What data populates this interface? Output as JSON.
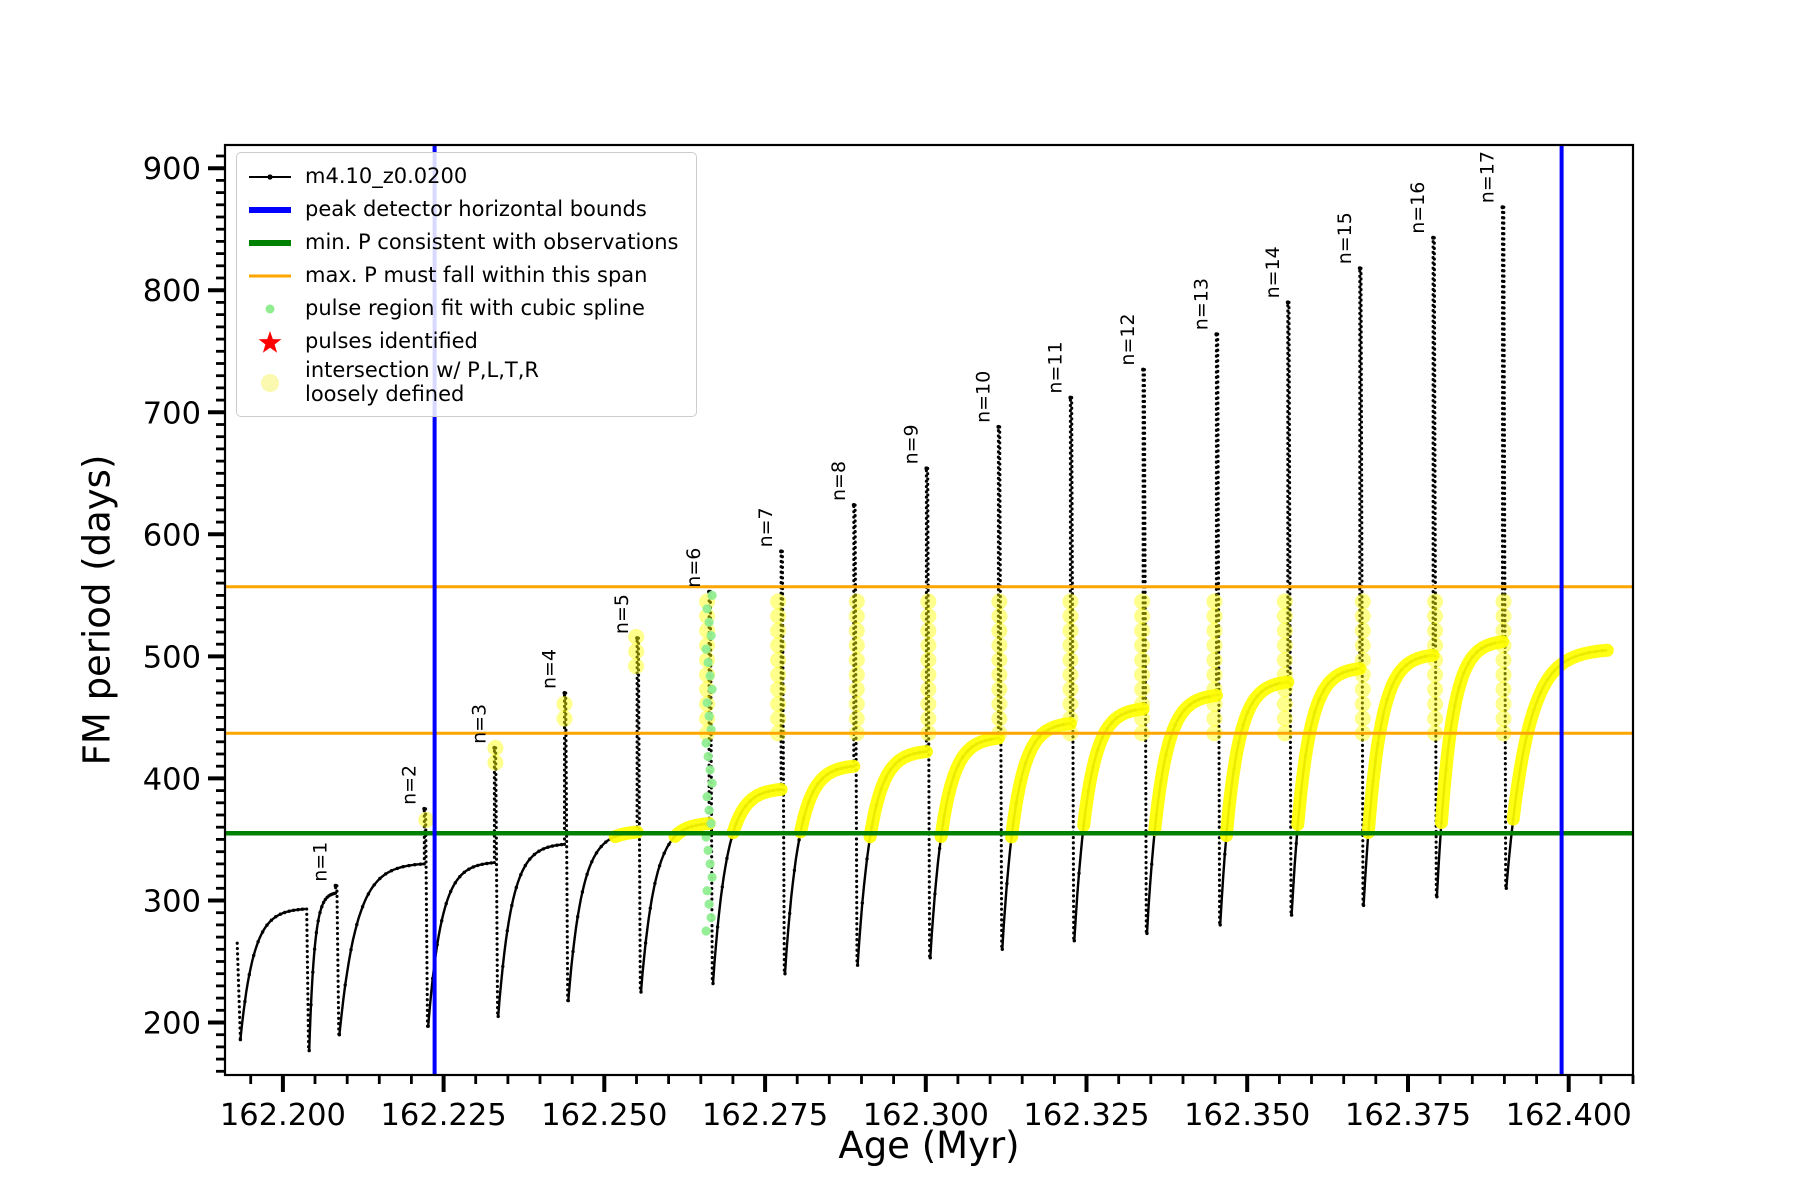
{
  "axes": {
    "xlabel": "Age (Myr)",
    "ylabel": "FM period (days)",
    "xlim": [
      162.191,
      162.41
    ],
    "ylim": [
      157,
      919
    ],
    "xticks": [
      {
        "v": 162.2,
        "label": "162.200"
      },
      {
        "v": 162.225,
        "label": "162.225"
      },
      {
        "v": 162.25,
        "label": "162.250"
      },
      {
        "v": 162.275,
        "label": "162.275"
      },
      {
        "v": 162.3,
        "label": "162.300"
      },
      {
        "v": 162.325,
        "label": "162.325"
      },
      {
        "v": 162.35,
        "label": "162.350"
      },
      {
        "v": 162.375,
        "label": "162.375"
      },
      {
        "v": 162.4,
        "label": "162.400"
      }
    ],
    "yticks": [
      {
        "v": 200,
        "label": "200"
      },
      {
        "v": 300,
        "label": "300"
      },
      {
        "v": 400,
        "label": "400"
      },
      {
        "v": 500,
        "label": "500"
      },
      {
        "v": 600,
        "label": "600"
      },
      {
        "v": 700,
        "label": "700"
      },
      {
        "v": 800,
        "label": "800"
      },
      {
        "v": 900,
        "label": "900"
      }
    ],
    "xminor_step": 0.005,
    "yminor_step": 10
  },
  "legend": {
    "items": [
      {
        "marker": "line-dot",
        "color": "#000000",
        "label": "m4.10_z0.0200"
      },
      {
        "marker": "thick-line",
        "color": "#0000ff",
        "label": "peak detector horizontal bounds"
      },
      {
        "marker": "thick-line",
        "color": "#008000",
        "label": "min. P consistent with observations"
      },
      {
        "marker": "line",
        "color": "#ffa500",
        "label": "max. P must fall within this span"
      },
      {
        "marker": "dot",
        "color": "#90ee90",
        "label": "pulse region fit with cubic spline"
      },
      {
        "marker": "star",
        "color": "#ff0000",
        "label": "pulses identified"
      },
      {
        "marker": "big-dot",
        "color": "#fbf9b0",
        "label": "intersection w/ P,L,T,R\nloosely defined"
      }
    ]
  },
  "chart_data": {
    "type": "line",
    "title": "",
    "xlabel": "Age (Myr)",
    "ylabel": "FM period (days)",
    "xlim": [
      162.191,
      162.41
    ],
    "ylim": [
      157,
      919
    ],
    "series_name": "m4.10_z0.0200",
    "palette": {
      "black": "#000000",
      "blue": "#0000ff",
      "green": "#008000",
      "orange": "#ffa500",
      "yellow": "#ffff00",
      "lightgreen": "#90ee90",
      "red": "#ff0000"
    },
    "vlines": {
      "color": "#0000ff",
      "x": [
        162.2236,
        162.3989
      ],
      "width": 4
    },
    "hlines": [
      {
        "color": "#008000",
        "y": 355,
        "width": 4.5
      },
      {
        "color": "#ffa500",
        "y": 437,
        "width": 3
      },
      {
        "color": "#ffa500",
        "y": 557,
        "width": 3
      }
    ],
    "yellow_band": [
      352,
      560
    ],
    "green_column": {
      "x": 162.2663,
      "y_min": 275,
      "y_max": 550,
      "step": 11
    },
    "cycles": [
      {
        "n": "",
        "x_start": 162.1934,
        "y_min": 186,
        "x_spike": 162.2035,
        "shoulder": 293,
        "peak": 293,
        "yellow_rise": false,
        "yellow_spike": null,
        "pre_drop": {
          "x": 162.1929,
          "y_top": 265
        }
      },
      {
        "n": "n=1",
        "x_start": 162.2041,
        "y_min": 177,
        "x_spike": 162.2082,
        "shoulder": 306,
        "peak": 312,
        "yellow_rise": false,
        "yellow_spike": null
      },
      {
        "n": "n=2",
        "x_start": 162.2088,
        "y_min": 190,
        "x_spike": 162.222,
        "shoulder": 330,
        "peak": 375,
        "yellow_rise": false,
        "yellow_spike": [
          366,
          376
        ]
      },
      {
        "n": "n=3",
        "x_start": 162.2226,
        "y_min": 197,
        "x_spike": 162.2329,
        "shoulder": 331,
        "peak": 425,
        "yellow_rise": false,
        "yellow_spike": [
          413,
          426
        ]
      },
      {
        "n": "n=4",
        "x_start": 162.2335,
        "y_min": 205,
        "x_spike": 162.2438,
        "shoulder": 346,
        "peak": 470,
        "yellow_rise": false,
        "yellow_spike": [
          449,
          471
        ]
      },
      {
        "n": "n=5",
        "x_start": 162.2444,
        "y_min": 218,
        "x_spike": 162.2551,
        "shoulder": 356,
        "peak": 515,
        "yellow_rise": true,
        "yellow_spike": [
          492,
          516
        ]
      },
      {
        "n": "n=6",
        "x_start": 162.2557,
        "y_min": 225,
        "x_spike": 162.2663,
        "shoulder": 363,
        "peak": 553,
        "yellow_rise": true,
        "yellow_spike": [
          437,
          553
        ]
      },
      {
        "n": "n=7",
        "x_start": 162.2669,
        "y_min": 232,
        "x_spike": 162.2775,
        "shoulder": 391,
        "peak": 586,
        "yellow_rise": true,
        "yellow_spike": [
          437,
          545
        ]
      },
      {
        "n": "n=8",
        "x_start": 162.2781,
        "y_min": 240,
        "x_spike": 162.2888,
        "shoulder": 410,
        "peak": 624,
        "yellow_rise": true,
        "yellow_spike": [
          437,
          545
        ]
      },
      {
        "n": "n=9",
        "x_start": 162.2894,
        "y_min": 247,
        "x_spike": 162.3001,
        "shoulder": 422,
        "peak": 654,
        "yellow_rise": true,
        "yellow_spike": [
          437,
          545
        ]
      },
      {
        "n": "n=10",
        "x_start": 162.3007,
        "y_min": 253,
        "x_spike": 162.3113,
        "shoulder": 433,
        "peak": 688,
        "yellow_rise": true,
        "yellow_spike": [
          437,
          545
        ]
      },
      {
        "n": "n=11",
        "x_start": 162.3119,
        "y_min": 260,
        "x_spike": 162.3225,
        "shoulder": 445,
        "peak": 712,
        "yellow_rise": true,
        "yellow_spike": [
          437,
          545
        ]
      },
      {
        "n": "n=12",
        "x_start": 162.3231,
        "y_min": 267,
        "x_spike": 162.3338,
        "shoulder": 457,
        "peak": 735,
        "yellow_rise": true,
        "yellow_spike": [
          437,
          545
        ]
      },
      {
        "n": "n=13",
        "x_start": 162.3344,
        "y_min": 273,
        "x_spike": 162.3452,
        "shoulder": 468,
        "peak": 764,
        "yellow_rise": true,
        "yellow_spike": [
          437,
          545
        ]
      },
      {
        "n": "n=14",
        "x_start": 162.3458,
        "y_min": 280,
        "x_spike": 162.3563,
        "shoulder": 479,
        "peak": 790,
        "yellow_rise": true,
        "yellow_spike": [
          437,
          545
        ]
      },
      {
        "n": "n=15",
        "x_start": 162.3569,
        "y_min": 288,
        "x_spike": 162.3675,
        "shoulder": 490,
        "peak": 818,
        "yellow_rise": true,
        "yellow_spike": [
          437,
          545
        ]
      },
      {
        "n": "n=16",
        "x_start": 162.3681,
        "y_min": 296,
        "x_spike": 162.3789,
        "shoulder": 501,
        "peak": 843,
        "yellow_rise": true,
        "yellow_spike": [
          437,
          545
        ]
      },
      {
        "n": "n=17",
        "x_start": 162.3795,
        "y_min": 303,
        "x_spike": 162.3897,
        "shoulder": 512,
        "peak": 868,
        "yellow_rise": true,
        "yellow_spike": [
          437,
          545
        ]
      },
      {
        "n": "",
        "x_start": 162.3903,
        "y_min": 310,
        "x_spike": 162.406,
        "shoulder": 505,
        "peak": 505,
        "yellow_rise": true,
        "yellow_spike": null
      }
    ]
  }
}
